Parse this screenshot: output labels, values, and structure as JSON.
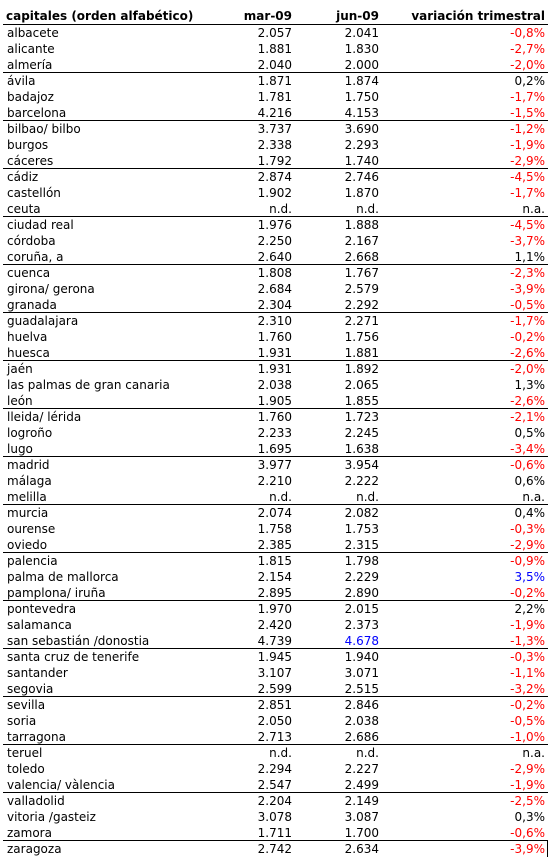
{
  "columns": {
    "name": "capitales (orden alfabético)",
    "mar": "mar-09",
    "jun": "jun-09",
    "var": "variación trimestral"
  },
  "colors": {
    "negative": "#ff0000",
    "highlight": "#0000ff",
    "text": "#000000"
  },
  "rows": [
    {
      "name": "albacete",
      "mar": "2.057",
      "jun": "2.041",
      "var": "-0,8%"
    },
    {
      "name": "alicante",
      "mar": "1.881",
      "jun": "1.830",
      "var": "-2,7%"
    },
    {
      "name": "almería",
      "mar": "2.040",
      "jun": "2.000",
      "var": "-2,0%"
    },
    {
      "name": "ávila",
      "mar": "1.871",
      "jun": "1.874",
      "var": "0,2%"
    },
    {
      "name": "badajoz",
      "mar": "1.781",
      "jun": "1.750",
      "var": "-1,7%"
    },
    {
      "name": "barcelona",
      "mar": "4.216",
      "jun": "4.153",
      "var": "-1,5%"
    },
    {
      "name": "bilbao/ bilbo",
      "mar": "3.737",
      "jun": "3.690",
      "var": "-1,2%"
    },
    {
      "name": "burgos",
      "mar": "2.338",
      "jun": "2.293",
      "var": "-1,9%"
    },
    {
      "name": "cáceres",
      "mar": "1.792",
      "jun": "1.740",
      "var": "-2,9%"
    },
    {
      "name": "cádiz",
      "mar": "2.874",
      "jun": "2.746",
      "var": "-4,5%"
    },
    {
      "name": "castellón",
      "mar": "1.902",
      "jun": "1.870",
      "var": "-1,7%"
    },
    {
      "name": "ceuta",
      "mar": "n.d.",
      "jun": "n.d.",
      "var": "n.a."
    },
    {
      "name": "ciudad real",
      "mar": "1.976",
      "jun": "1.888",
      "var": "-4,5%"
    },
    {
      "name": "córdoba",
      "mar": "2.250",
      "jun": "2.167",
      "var": "-3,7%"
    },
    {
      "name": "coruña, a",
      "mar": "2.640",
      "jun": "2.668",
      "var": "1,1%"
    },
    {
      "name": "cuenca",
      "mar": "1.808",
      "jun": "1.767",
      "var": "-2,3%"
    },
    {
      "name": "girona/ gerona",
      "mar": "2.684",
      "jun": "2.579",
      "var": "-3,9%"
    },
    {
      "name": "granada",
      "mar": "2.304",
      "jun": "2.292",
      "var": "-0,5%"
    },
    {
      "name": "guadalajara",
      "mar": "2.310",
      "jun": "2.271",
      "var": "-1,7%"
    },
    {
      "name": "huelva",
      "mar": "1.760",
      "jun": "1.756",
      "var": "-0,2%"
    },
    {
      "name": "huesca",
      "mar": "1.931",
      "jun": "1.881",
      "var": "-2,6%"
    },
    {
      "name": "jaén",
      "mar": "1.931",
      "jun": "1.892",
      "var": "-2,0%"
    },
    {
      "name": "las palmas de gran canaria",
      "mar": "2.038",
      "jun": "2.065",
      "var": "1,3%"
    },
    {
      "name": "león",
      "mar": "1.905",
      "jun": "1.855",
      "var": "-2,6%"
    },
    {
      "name": "lleida/ lérida",
      "mar": "1.760",
      "jun": "1.723",
      "var": "-2,1%"
    },
    {
      "name": "logroño",
      "mar": "2.233",
      "jun": "2.245",
      "var": "0,5%"
    },
    {
      "name": "lugo",
      "mar": "1.695",
      "jun": "1.638",
      "var": "-3,4%"
    },
    {
      "name": "madrid",
      "mar": "3.977",
      "jun": "3.954",
      "var": "-0,6%"
    },
    {
      "name": "málaga",
      "mar": "2.210",
      "jun": "2.222",
      "var": "0,6%"
    },
    {
      "name": "melilla",
      "mar": "n.d.",
      "jun": "n.d.",
      "var": "n.a."
    },
    {
      "name": "murcia",
      "mar": "2.074",
      "jun": "2.082",
      "var": "0,4%"
    },
    {
      "name": "ourense",
      "mar": "1.758",
      "jun": "1.753",
      "var": "-0,3%"
    },
    {
      "name": "oviedo",
      "mar": "2.385",
      "jun": "2.315",
      "var": "-2,9%"
    },
    {
      "name": "palencia",
      "mar": "1.815",
      "jun": "1.798",
      "var": "-0,9%"
    },
    {
      "name": "palma de mallorca",
      "mar": "2.154",
      "jun": "2.229",
      "var": "3,5%",
      "var_color": "#0000ff"
    },
    {
      "name": "pamplona/ iruña",
      "mar": "2.895",
      "jun": "2.890",
      "var": "-0,2%"
    },
    {
      "name": "pontevedra",
      "mar": "1.970",
      "jun": "2.015",
      "var": "2,2%"
    },
    {
      "name": "salamanca",
      "mar": "2.420",
      "jun": "2.373",
      "var": "-1,9%"
    },
    {
      "name": "san sebastián /donostia",
      "mar": "4.739",
      "jun": "4.678",
      "var": "-1,3%",
      "jun_color": "#0000ff"
    },
    {
      "name": "santa cruz de tenerife",
      "mar": "1.945",
      "jun": "1.940",
      "var": "-0,3%"
    },
    {
      "name": "santander",
      "mar": "3.107",
      "jun": "3.071",
      "var": "-1,1%"
    },
    {
      "name": "segovia",
      "mar": "2.599",
      "jun": "2.515",
      "var": "-3,2%"
    },
    {
      "name": "sevilla",
      "mar": "2.851",
      "jun": "2.846",
      "var": "-0,2%"
    },
    {
      "name": "soria",
      "mar": "2.050",
      "jun": "2.038",
      "var": "-0,5%"
    },
    {
      "name": "tarragona",
      "mar": "2.713",
      "jun": "2.686",
      "var": "-1,0%"
    },
    {
      "name": "teruel",
      "mar": "n.d.",
      "jun": "n.d.",
      "var": "n.a."
    },
    {
      "name": "toledo",
      "mar": "2.294",
      "jun": "2.227",
      "var": "-2,9%"
    },
    {
      "name": "valencia/ vàlencia",
      "mar": "2.547",
      "jun": "2.499",
      "var": "-1,9%"
    },
    {
      "name": "valladolid",
      "mar": "2.204",
      "jun": "2.149",
      "var": "-2,5%"
    },
    {
      "name": "vitoria /gasteiz",
      "mar": "3.078",
      "jun": "3.087",
      "var": "0,3%"
    },
    {
      "name": "zamora",
      "mar": "1.711",
      "jun": "1.700",
      "var": "-0,6%"
    },
    {
      "name": "zaragoza",
      "mar": "2.742",
      "jun": "2.634",
      "var": "-3,9%"
    }
  ]
}
